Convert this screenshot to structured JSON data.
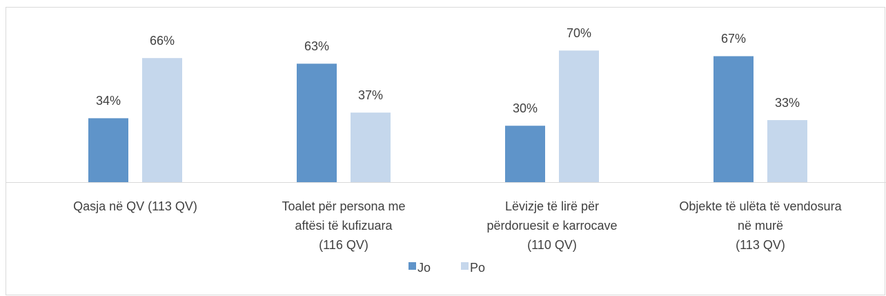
{
  "chart_data": {
    "type": "bar",
    "categories": [
      [
        "Qasja në QV (113 QV)"
      ],
      [
        "Toalet për persona me",
        "aftësi të kufizuara",
        "(116 QV)"
      ],
      [
        "Lëvizje të lirë për",
        "përdoruesit e karrocave",
        "(110 QV)"
      ],
      [
        "Objekte të ulëta të vendosura",
        "në murë",
        "(113 QV)"
      ]
    ],
    "series": [
      {
        "name": "Jo",
        "color": "#5f94c9",
        "values": [
          34,
          63,
          30,
          67
        ],
        "value_labels": [
          "34%",
          "63%",
          "30%",
          "67%"
        ]
      },
      {
        "name": "Po",
        "color": "#c5d7ec",
        "values": [
          66,
          37,
          70,
          33
        ],
        "value_labels": [
          "66%",
          "37%",
          "70%",
          "33%"
        ]
      }
    ],
    "ylim": [
      0,
      80
    ],
    "legend": "bottom"
  }
}
